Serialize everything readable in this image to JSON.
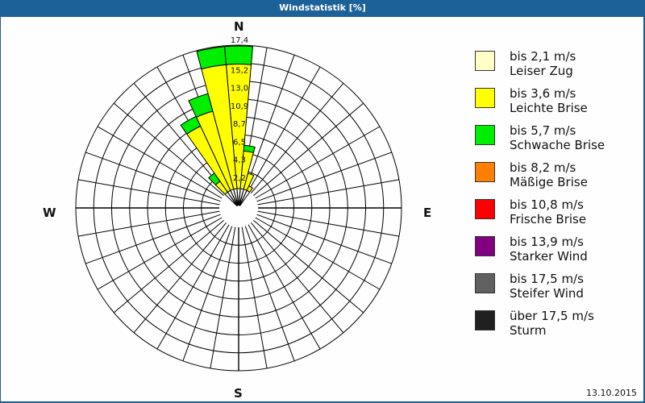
{
  "window": {
    "title": "Windstatistik [%]"
  },
  "compass": {
    "n": "N",
    "e": "E",
    "s": "S",
    "w": "W"
  },
  "date": "13.10.2015",
  "legend": [
    {
      "speed": "bis 2,1 m/s",
      "name": "Leiser Zug",
      "color": "#ffffc8"
    },
    {
      "speed": "bis 3,6 m/s",
      "name": "Leichte Brise",
      "color": "#ffff00"
    },
    {
      "speed": "bis 5,7 m/s",
      "name": "Schwache Brise",
      "color": "#00ee00"
    },
    {
      "speed": "bis 8,2 m/s",
      "name": "Mäßige Brise",
      "color": "#ff8000"
    },
    {
      "speed": "bis 10,8 m/s",
      "name": "Frische Brise",
      "color": "#ff0000"
    },
    {
      "speed": "bis 13,9 m/s",
      "name": "Starker Wind",
      "color": "#800080"
    },
    {
      "speed": "bis 17,5 m/s",
      "name": "Steifer Wind",
      "color": "#606060"
    },
    {
      "speed": "über 17,5 m/s",
      "name": "Sturm",
      "color": "#202020"
    }
  ],
  "chart_data": {
    "type": "polar-bar",
    "title": "Windstatistik [%]",
    "unit": "%",
    "ring_labels": [
      "2,2",
      "4,3",
      "6,5",
      "8,7",
      "10,9",
      "13,0",
      "15,2",
      "17,4"
    ],
    "rmax": 17.4,
    "sector_width_deg": 10,
    "series_names": [
      "Leiser Zug",
      "Leichte Brise",
      "Schwache Brise",
      "Mäßige Brise",
      "Frische Brise",
      "Starker Wind",
      "Steifer Wind",
      "Sturm"
    ],
    "sectors": [
      {
        "dir_deg": 0,
        "stack": [
          {
            "cls": "Leichte Brise",
            "to": 15.1
          },
          {
            "cls": "Schwache Brise",
            "to": 17.3
          }
        ]
      },
      {
        "dir_deg": 350,
        "stack": [
          {
            "cls": "Leichte Brise",
            "to": 15.1
          },
          {
            "cls": "Schwache Brise",
            "to": 17.3
          }
        ]
      },
      {
        "dir_deg": 340,
        "stack": [
          {
            "cls": "Leichte Brise",
            "to": 9.8
          },
          {
            "cls": "Schwache Brise",
            "to": 12.0
          }
        ]
      },
      {
        "dir_deg": 330,
        "stack": [
          {
            "cls": "Leichte Brise",
            "to": 8.6
          },
          {
            "cls": "Schwache Brise",
            "to": 9.9
          }
        ]
      },
      {
        "dir_deg": 320,
        "stack": [
          {
            "cls": "Leichte Brise",
            "to": 1.6
          },
          {
            "cls": "Schwache Brise",
            "to": 2.8
          }
        ]
      },
      {
        "dir_deg": 10,
        "stack": [
          {
            "cls": "Leichte Brise",
            "to": 4.6
          },
          {
            "cls": "Schwache Brise",
            "to": 5.3
          }
        ]
      },
      {
        "dir_deg": 20,
        "stack": [
          {
            "cls": "Leichte Brise",
            "to": 2.0
          }
        ]
      },
      {
        "dir_deg": 30,
        "stack": [
          {
            "cls": "Leichte Brise",
            "to": 0.6
          }
        ]
      }
    ]
  }
}
